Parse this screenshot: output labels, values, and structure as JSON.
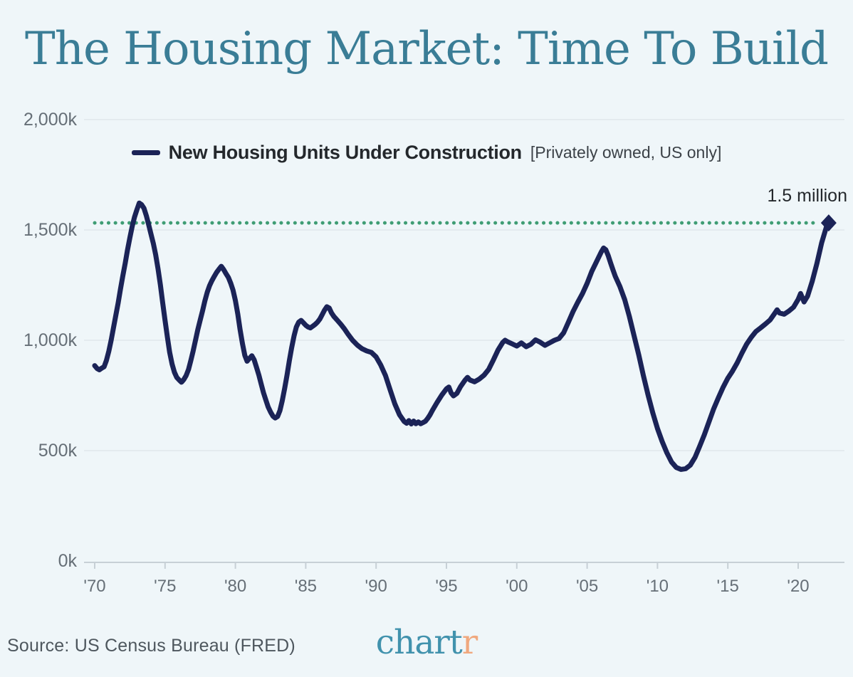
{
  "header": {
    "title": "The Housing Market: Time To Build"
  },
  "footer": {
    "source": "Source: US Census Bureau (FRED)",
    "logo_primary": "chart",
    "logo_accent": "r"
  },
  "theme": {
    "background": "#eff6f9",
    "title_color": "#3a7d96",
    "axis_text": "#666f77",
    "grid": "#e4ebef",
    "axis_line": "#c7d0d6",
    "text_dark": "#24282c",
    "source_text": "#4e575e",
    "logo_teal": "#4192ad",
    "logo_orange": "#f0a87e"
  },
  "chart_data": {
    "type": "line",
    "title": "The Housing Market: Time To Build",
    "xlim": [
      1970,
      2022.4
    ],
    "ylim": [
      0,
      2000
    ],
    "grid": true,
    "legend_position": "top-center",
    "yticks": [
      {
        "label": "0k",
        "value": 0
      },
      {
        "label": "500k",
        "value": 500
      },
      {
        "label": "1,000k",
        "value": 1000
      },
      {
        "label": "1,500k",
        "value": 1500
      },
      {
        "label": "2,000k",
        "value": 2000
      }
    ],
    "xticks": [
      {
        "label": "'70",
        "year": 1970
      },
      {
        "label": "'75",
        "year": 1975
      },
      {
        "label": "'80",
        "year": 1980
      },
      {
        "label": "'85",
        "year": 1985
      },
      {
        "label": "'90",
        "year": 1990
      },
      {
        "label": "'95",
        "year": 1995
      },
      {
        "label": "'00",
        "year": 2000
      },
      {
        "label": "'05",
        "year": 2005
      },
      {
        "label": "'10",
        "year": 2010
      },
      {
        "label": "'15",
        "year": 2015
      },
      {
        "label": "'20",
        "year": 2020
      }
    ],
    "annotation": {
      "label": "1.5 million",
      "value_k": 1532,
      "color": "#3f9d74"
    },
    "series": [
      {
        "name": "New Housing Units Under Construction",
        "qualifier": "[Privately owned, US only]",
        "color": "#1b2357",
        "units": "thousands of units",
        "points": [
          [
            1970.0,
            885
          ],
          [
            1970.17,
            872
          ],
          [
            1970.33,
            866
          ],
          [
            1970.5,
            874
          ],
          [
            1970.67,
            880
          ],
          [
            1970.83,
            908
          ],
          [
            1971.0,
            950
          ],
          [
            1971.17,
            1000
          ],
          [
            1971.33,
            1055
          ],
          [
            1971.5,
            1112
          ],
          [
            1971.67,
            1170
          ],
          [
            1971.83,
            1232
          ],
          [
            1972.0,
            1292
          ],
          [
            1972.17,
            1350
          ],
          [
            1972.33,
            1408
          ],
          [
            1972.5,
            1465
          ],
          [
            1972.67,
            1518
          ],
          [
            1972.83,
            1558
          ],
          [
            1973.0,
            1592
          ],
          [
            1973.17,
            1622
          ],
          [
            1973.33,
            1615
          ],
          [
            1973.5,
            1598
          ],
          [
            1973.67,
            1565
          ],
          [
            1973.83,
            1525
          ],
          [
            1974.0,
            1482
          ],
          [
            1974.17,
            1438
          ],
          [
            1974.33,
            1388
          ],
          [
            1974.5,
            1325
          ],
          [
            1974.67,
            1250
          ],
          [
            1974.83,
            1172
          ],
          [
            1975.0,
            1090
          ],
          [
            1975.17,
            1012
          ],
          [
            1975.33,
            945
          ],
          [
            1975.5,
            892
          ],
          [
            1975.67,
            855
          ],
          [
            1975.83,
            832
          ],
          [
            1976.0,
            820
          ],
          [
            1976.17,
            810
          ],
          [
            1976.33,
            822
          ],
          [
            1976.5,
            840
          ],
          [
            1976.67,
            868
          ],
          [
            1976.83,
            908
          ],
          [
            1977.0,
            952
          ],
          [
            1977.17,
            1002
          ],
          [
            1977.33,
            1048
          ],
          [
            1977.5,
            1092
          ],
          [
            1977.67,
            1135
          ],
          [
            1977.83,
            1178
          ],
          [
            1978.0,
            1218
          ],
          [
            1978.17,
            1248
          ],
          [
            1978.33,
            1270
          ],
          [
            1978.5,
            1290
          ],
          [
            1978.67,
            1308
          ],
          [
            1978.83,
            1322
          ],
          [
            1979.0,
            1335
          ],
          [
            1979.17,
            1320
          ],
          [
            1979.33,
            1302
          ],
          [
            1979.5,
            1285
          ],
          [
            1979.67,
            1258
          ],
          [
            1979.83,
            1228
          ],
          [
            1980.0,
            1180
          ],
          [
            1980.17,
            1118
          ],
          [
            1980.33,
            1050
          ],
          [
            1980.5,
            985
          ],
          [
            1980.67,
            932
          ],
          [
            1980.83,
            905
          ],
          [
            1981.0,
            918
          ],
          [
            1981.17,
            930
          ],
          [
            1981.33,
            912
          ],
          [
            1981.5,
            878
          ],
          [
            1981.67,
            842
          ],
          [
            1981.83,
            802
          ],
          [
            1982.0,
            762
          ],
          [
            1982.17,
            728
          ],
          [
            1982.33,
            698
          ],
          [
            1982.5,
            675
          ],
          [
            1982.67,
            656
          ],
          [
            1982.83,
            648
          ],
          [
            1983.0,
            655
          ],
          [
            1983.17,
            682
          ],
          [
            1983.33,
            726
          ],
          [
            1983.5,
            782
          ],
          [
            1983.67,
            842
          ],
          [
            1983.83,
            906
          ],
          [
            1984.0,
            966
          ],
          [
            1984.17,
            1020
          ],
          [
            1984.33,
            1060
          ],
          [
            1984.5,
            1082
          ],
          [
            1984.67,
            1090
          ],
          [
            1984.83,
            1080
          ],
          [
            1985.0,
            1068
          ],
          [
            1985.17,
            1060
          ],
          [
            1985.33,
            1056
          ],
          [
            1985.5,
            1064
          ],
          [
            1985.67,
            1072
          ],
          [
            1985.83,
            1082
          ],
          [
            1986.0,
            1096
          ],
          [
            1986.17,
            1116
          ],
          [
            1986.33,
            1136
          ],
          [
            1986.5,
            1152
          ],
          [
            1986.67,
            1146
          ],
          [
            1986.83,
            1124
          ],
          [
            1987.0,
            1108
          ],
          [
            1987.25,
            1090
          ],
          [
            1987.5,
            1072
          ],
          [
            1987.75,
            1052
          ],
          [
            1988.0,
            1028
          ],
          [
            1988.33,
            1000
          ],
          [
            1988.67,
            978
          ],
          [
            1989.0,
            962
          ],
          [
            1989.33,
            952
          ],
          [
            1989.67,
            945
          ],
          [
            1990.0,
            925
          ],
          [
            1990.33,
            888
          ],
          [
            1990.67,
            840
          ],
          [
            1991.0,
            775
          ],
          [
            1991.33,
            712
          ],
          [
            1991.67,
            662
          ],
          [
            1992.0,
            632
          ],
          [
            1992.17,
            624
          ],
          [
            1992.33,
            636
          ],
          [
            1992.5,
            621
          ],
          [
            1992.67,
            634
          ],
          [
            1992.83,
            622
          ],
          [
            1993.0,
            630
          ],
          [
            1993.17,
            622
          ],
          [
            1993.33,
            627
          ],
          [
            1993.5,
            633
          ],
          [
            1993.67,
            646
          ],
          [
            1993.83,
            662
          ],
          [
            1994.0,
            682
          ],
          [
            1994.33,
            718
          ],
          [
            1994.67,
            752
          ],
          [
            1995.0,
            780
          ],
          [
            1995.17,
            788
          ],
          [
            1995.33,
            762
          ],
          [
            1995.5,
            748
          ],
          [
            1995.75,
            760
          ],
          [
            1996.0,
            790
          ],
          [
            1996.33,
            820
          ],
          [
            1996.5,
            832
          ],
          [
            1996.67,
            820
          ],
          [
            1997.0,
            812
          ],
          [
            1997.33,
            824
          ],
          [
            1997.67,
            842
          ],
          [
            1998.0,
            868
          ],
          [
            1998.33,
            910
          ],
          [
            1998.67,
            956
          ],
          [
            1999.0,
            990
          ],
          [
            1999.17,
            1000
          ],
          [
            1999.33,
            994
          ],
          [
            1999.67,
            984
          ],
          [
            2000.0,
            974
          ],
          [
            2000.33,
            988
          ],
          [
            2000.67,
            971
          ],
          [
            2001.0,
            982
          ],
          [
            2001.33,
            1002
          ],
          [
            2001.67,
            991
          ],
          [
            2002.0,
            977
          ],
          [
            2002.33,
            988
          ],
          [
            2002.67,
            1000
          ],
          [
            2003.0,
            1008
          ],
          [
            2003.33,
            1034
          ],
          [
            2003.67,
            1082
          ],
          [
            2004.0,
            1130
          ],
          [
            2004.33,
            1172
          ],
          [
            2004.67,
            1212
          ],
          [
            2005.0,
            1258
          ],
          [
            2005.33,
            1312
          ],
          [
            2005.67,
            1356
          ],
          [
            2006.0,
            1400
          ],
          [
            2006.17,
            1418
          ],
          [
            2006.33,
            1410
          ],
          [
            2006.5,
            1384
          ],
          [
            2006.67,
            1350
          ],
          [
            2006.83,
            1320
          ],
          [
            2007.0,
            1290
          ],
          [
            2007.33,
            1244
          ],
          [
            2007.67,
            1184
          ],
          [
            2008.0,
            1108
          ],
          [
            2008.33,
            1022
          ],
          [
            2008.67,
            934
          ],
          [
            2009.0,
            840
          ],
          [
            2009.33,
            752
          ],
          [
            2009.67,
            670
          ],
          [
            2010.0,
            600
          ],
          [
            2010.33,
            542
          ],
          [
            2010.67,
            490
          ],
          [
            2011.0,
            448
          ],
          [
            2011.33,
            424
          ],
          [
            2011.67,
            415
          ],
          [
            2012.0,
            418
          ],
          [
            2012.33,
            434
          ],
          [
            2012.67,
            470
          ],
          [
            2013.0,
            520
          ],
          [
            2013.33,
            572
          ],
          [
            2013.67,
            632
          ],
          [
            2014.0,
            690
          ],
          [
            2014.33,
            740
          ],
          [
            2014.67,
            788
          ],
          [
            2015.0,
            828
          ],
          [
            2015.33,
            860
          ],
          [
            2015.67,
            898
          ],
          [
            2016.0,
            942
          ],
          [
            2016.33,
            982
          ],
          [
            2016.67,
            1014
          ],
          [
            2017.0,
            1040
          ],
          [
            2017.33,
            1056
          ],
          [
            2017.67,
            1074
          ],
          [
            2018.0,
            1092
          ],
          [
            2018.33,
            1122
          ],
          [
            2018.5,
            1138
          ],
          [
            2018.67,
            1124
          ],
          [
            2019.0,
            1118
          ],
          [
            2019.33,
            1132
          ],
          [
            2019.67,
            1150
          ],
          [
            2020.0,
            1185
          ],
          [
            2020.17,
            1212
          ],
          [
            2020.42,
            1174
          ],
          [
            2020.67,
            1200
          ],
          [
            2021.0,
            1268
          ],
          [
            2021.33,
            1348
          ],
          [
            2021.67,
            1442
          ],
          [
            2022.0,
            1512
          ],
          [
            2022.17,
            1532
          ]
        ]
      }
    ]
  }
}
